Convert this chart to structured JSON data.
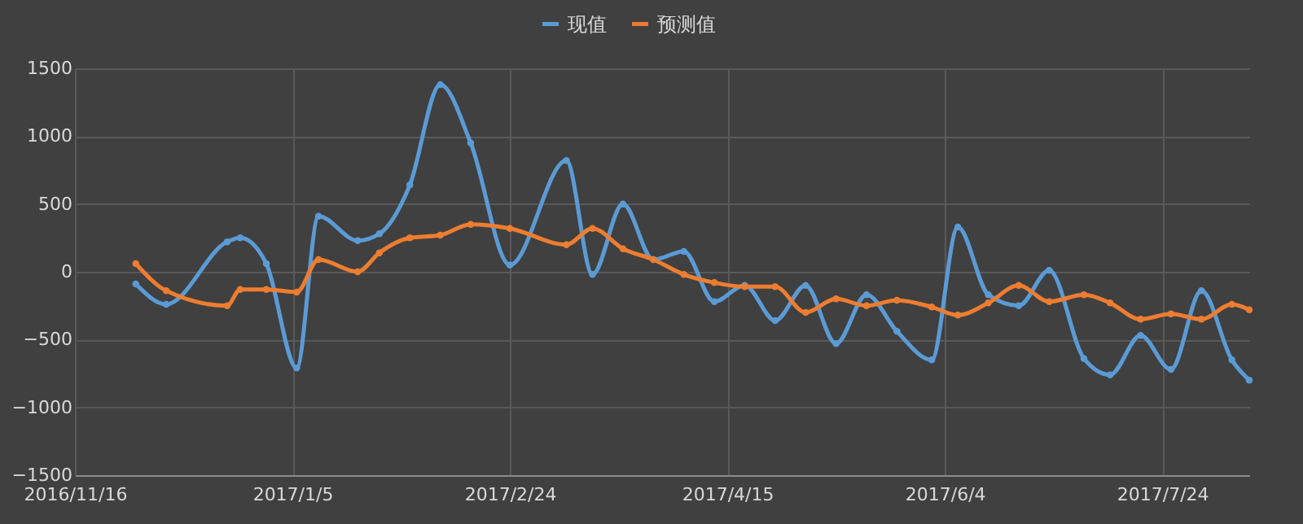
{
  "chart_data": {
    "type": "line",
    "x": [
      "2016-11-30",
      "2016-12-07",
      "2016-12-21",
      "2016-12-24",
      "2016-12-30",
      "2017-01-06",
      "2017-01-11",
      "2017-01-20",
      "2017-01-25",
      "2017-02-01",
      "2017-02-08",
      "2017-02-15",
      "2017-02-24",
      "2017-03-09",
      "2017-03-15",
      "2017-03-22",
      "2017-03-29",
      "2017-04-05",
      "2017-04-12",
      "2017-04-19",
      "2017-04-26",
      "2017-05-03",
      "2017-05-10",
      "2017-05-17",
      "2017-05-24",
      "2017-06-01",
      "2017-06-07",
      "2017-06-14",
      "2017-06-21",
      "2017-06-28",
      "2017-07-06",
      "2017-07-12",
      "2017-07-19",
      "2017-07-26",
      "2017-08-02",
      "2017-08-09",
      "2017-08-13"
    ],
    "series": [
      {
        "name": "现值",
        "color": "#5b9bd5",
        "values": [
          -90,
          -240,
          220,
          250,
          60,
          -710,
          410,
          230,
          280,
          640,
          1380,
          950,
          50,
          820,
          -20,
          500,
          90,
          150,
          -220,
          -100,
          -360,
          -100,
          -530,
          -170,
          -440,
          -650,
          330,
          -170,
          -250,
          10,
          -640,
          -760,
          -470,
          -720,
          -140,
          -650,
          -800
        ]
      },
      {
        "name": "预测值",
        "color": "#ed7d31",
        "values": [
          60,
          -140,
          -250,
          -130,
          -130,
          -150,
          90,
          0,
          140,
          250,
          270,
          350,
          320,
          200,
          320,
          170,
          90,
          -20,
          -80,
          -110,
          -110,
          -300,
          -200,
          -250,
          -210,
          -260,
          -320,
          -230,
          -100,
          -220,
          -170,
          -230,
          -350,
          -310,
          -350,
          -240,
          -280
        ]
      }
    ],
    "xlim": [
      "2016-11-16",
      "2017-08-13"
    ],
    "xticks": [
      {
        "value": "2016-11-16",
        "label": "2016/11/16"
      },
      {
        "value": "2017-01-05",
        "label": "2017/1/5"
      },
      {
        "value": "2017-02-24",
        "label": "2017/2/24"
      },
      {
        "value": "2017-04-15",
        "label": "2017/4/15"
      },
      {
        "value": "2017-06-04",
        "label": "2017/6/4"
      },
      {
        "value": "2017-07-24",
        "label": "2017/7/24"
      }
    ],
    "ylim": [
      -1500,
      1500
    ],
    "yticks": [
      -1500,
      -1000,
      -500,
      0,
      500,
      1000,
      1500
    ],
    "grid": true,
    "legend": "top",
    "marker": "circle",
    "line_style": "solid"
  }
}
